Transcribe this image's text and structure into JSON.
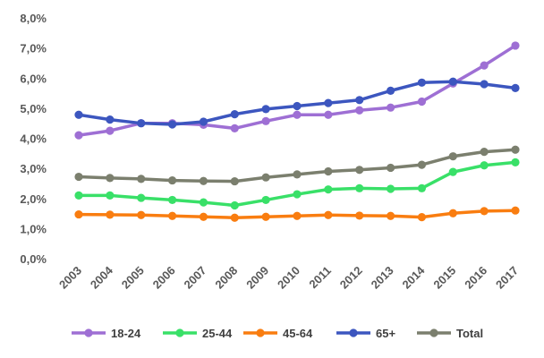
{
  "chart_data": {
    "type": "line",
    "title": "",
    "xlabel": "",
    "ylabel": "",
    "ylim": [
      0,
      8
    ],
    "y_ticks": [
      "0,0%",
      "1,0%",
      "2,0%",
      "3,0%",
      "4,0%",
      "5,0%",
      "6,0%",
      "7,0%",
      "8,0%"
    ],
    "grid": false,
    "legend_position": "bottom",
    "categories": [
      "2003",
      "2004",
      "2005",
      "2006",
      "2007",
      "2008",
      "2009",
      "2010",
      "2011",
      "2012",
      "2013",
      "2014",
      "2015",
      "2016",
      "2017"
    ],
    "series": [
      {
        "name": "18-24",
        "color": "#9e6fd4",
        "values": [
          4.1,
          4.25,
          4.5,
          4.5,
          4.45,
          4.33,
          4.57,
          4.78,
          4.78,
          4.93,
          5.02,
          5.22,
          5.82,
          6.42,
          7.08
        ]
      },
      {
        "name": "25-44",
        "color": "#39e068",
        "values": [
          2.1,
          2.1,
          2.02,
          1.95,
          1.87,
          1.77,
          1.95,
          2.14,
          2.3,
          2.34,
          2.32,
          2.34,
          2.88,
          3.1,
          3.2
        ]
      },
      {
        "name": "45-64",
        "color": "#f97d10",
        "values": [
          1.47,
          1.46,
          1.45,
          1.42,
          1.39,
          1.36,
          1.39,
          1.42,
          1.45,
          1.43,
          1.42,
          1.38,
          1.51,
          1.58,
          1.6
        ]
      },
      {
        "name": "65+",
        "color": "#3c56bf",
        "values": [
          4.78,
          4.62,
          4.5,
          4.46,
          4.55,
          4.8,
          4.97,
          5.07,
          5.17,
          5.27,
          5.58,
          5.85,
          5.88,
          5.8,
          5.67
        ]
      },
      {
        "name": "Total",
        "color": "#7b7f6e",
        "values": [
          2.72,
          2.68,
          2.65,
          2.6,
          2.58,
          2.57,
          2.7,
          2.8,
          2.9,
          2.95,
          3.02,
          3.12,
          3.4,
          3.55,
          3.62
        ]
      }
    ]
  }
}
